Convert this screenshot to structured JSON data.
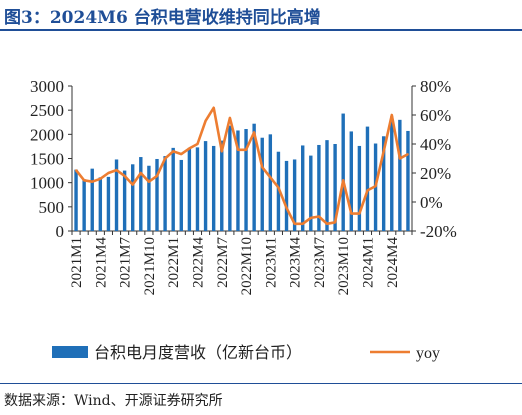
{
  "title": "图3：2024M6 台积电营收维持同比高增",
  "source": "数据来源：Wind、开源证券研究所",
  "colors": {
    "bar": "#1f6fb8",
    "line": "#ed7d31",
    "title": "#1f4e97"
  },
  "chart_data": {
    "type": "bar+line",
    "categories": [
      "2021M1",
      "2021M2",
      "2021M3",
      "2021M4",
      "2021M5",
      "2021M6",
      "2021M7",
      "2021M8",
      "2021M9",
      "2021M10",
      "2021M11",
      "2021M12",
      "2022M1",
      "2022M2",
      "2022M3",
      "2022M4",
      "2022M5",
      "2022M6",
      "2022M7",
      "2022M8",
      "2022M9",
      "2022M10",
      "2022M11",
      "2022M12",
      "2023M1",
      "2023M2",
      "2023M3",
      "2023M4",
      "2023M5",
      "2023M6",
      "2023M7",
      "2023M8",
      "2023M9",
      "2023M10",
      "2023M11",
      "2023M12",
      "2024M1",
      "2024M2",
      "2024M3",
      "2024M4",
      "2024M5",
      "2024M6"
    ],
    "x_tick_labels": [
      "2021M1",
      "2021M4",
      "2021M7",
      "2021M10",
      "2022M1",
      "2022M4",
      "2022M7",
      "2022M10",
      "2023M1",
      "2023M4",
      "2023M7",
      "2023M10",
      "2024M1",
      "2024M4"
    ],
    "series": [
      {
        "name": "台积电月度营收（亿新台币）",
        "axis": "left",
        "type": "bar",
        "values": [
          1270,
          1070,
          1290,
          1110,
          1120,
          1480,
          1250,
          1380,
          1530,
          1350,
          1490,
          1550,
          1720,
          1470,
          1720,
          1730,
          1860,
          1760,
          1870,
          2180,
          2080,
          2110,
          2220,
          1930,
          2000,
          1640,
          1450,
          1480,
          1770,
          1560,
          1780,
          1880,
          1800,
          2430,
          2060,
          1760,
          2160,
          1810,
          1960,
          2370,
          2300,
          2070
        ]
      },
      {
        "name": "yoy",
        "axis": "right",
        "type": "line",
        "values": [
          22,
          15,
          14,
          16,
          20,
          22,
          18,
          12,
          20,
          14,
          18,
          30,
          35,
          33,
          37,
          40,
          56,
          65,
          35,
          58,
          36,
          36,
          48,
          24,
          17,
          10,
          -4,
          -15,
          -15,
          -11,
          -10,
          -15,
          -14,
          15,
          -8,
          -8,
          8,
          11,
          35,
          60,
          30,
          33
        ]
      }
    ],
    "y_left": {
      "min": 0,
      "max": 3000,
      "ticks": [
        "0",
        "500",
        "1000",
        "1500",
        "2000",
        "2500",
        "3000"
      ]
    },
    "y_right": {
      "min": -20,
      "max": 80,
      "ticks": [
        "-20%",
        "0%",
        "20%",
        "40%",
        "60%",
        "80%"
      ]
    },
    "legend": {
      "position": "bottom",
      "items": [
        "台积电月度营收（亿新台币）",
        "yoy"
      ]
    },
    "grid": false
  }
}
